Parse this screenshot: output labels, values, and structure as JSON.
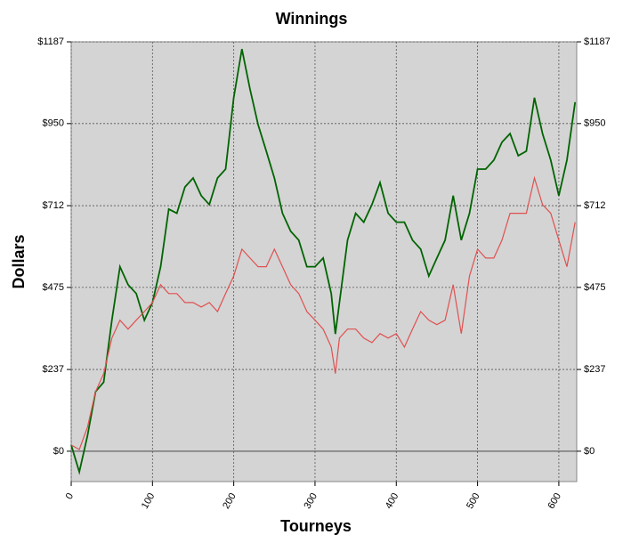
{
  "chart_data": {
    "type": "line",
    "title": "Winnings",
    "x_label": "Tourneys",
    "y_label": "Dollars",
    "x": [
      0,
      10,
      20,
      30,
      40,
      50,
      60,
      70,
      80,
      90,
      100,
      110,
      120,
      130,
      140,
      150,
      160,
      170,
      180,
      190,
      200,
      210,
      220,
      230,
      240,
      250,
      260,
      270,
      280,
      290,
      300,
      310,
      320,
      325,
      330,
      340,
      350,
      360,
      370,
      380,
      390,
      400,
      410,
      420,
      430,
      440,
      450,
      460,
      470,
      480,
      490,
      500,
      510,
      520,
      530,
      540,
      550,
      560,
      570,
      580,
      590,
      600,
      610,
      620
    ],
    "series": [
      {
        "color": "#006400",
        "values": [
          18,
          -60,
          45,
          173,
          200,
          380,
          535,
          483,
          457,
          380,
          431,
          535,
          702,
          690,
          766,
          792,
          741,
          715,
          792,
          818,
          1025,
          1166,
          1050,
          947,
          870,
          792,
          690,
          638,
          612,
          535,
          535,
          560,
          457,
          340,
          431,
          612,
          690,
          664,
          715,
          779,
          690,
          664,
          664,
          612,
          586,
          508,
          560,
          612,
          741,
          612,
          690,
          818,
          818,
          844,
          896,
          921,
          857,
          870,
          1025,
          921,
          844,
          741,
          844,
          1012
        ]
      },
      {
        "color": "#e05050",
        "values": [
          18,
          5,
          70,
          173,
          225,
          328,
          380,
          354,
          380,
          405,
          431,
          483,
          457,
          457,
          431,
          431,
          418,
          431,
          405,
          457,
          508,
          586,
          560,
          535,
          535,
          586,
          535,
          483,
          457,
          405,
          380,
          354,
          302,
          225,
          328,
          354,
          354,
          328,
          315,
          341,
          328,
          341,
          302,
          354,
          405,
          380,
          367,
          380,
          483,
          341,
          508,
          586,
          560,
          560,
          612,
          690,
          690,
          690,
          792,
          715,
          690,
          612,
          535,
          664
        ]
      }
    ],
    "xlim": [
      0,
      622
    ],
    "xticks": [
      0,
      100,
      200,
      300,
      400,
      500,
      600
    ],
    "ylim": [
      -88,
      1187
    ],
    "yticks": [
      {
        "value": 0,
        "label": "$0"
      },
      {
        "value": 237,
        "label": "$237"
      },
      {
        "value": 475,
        "label": "$475"
      },
      {
        "value": 712,
        "label": "$712"
      },
      {
        "value": 950,
        "label": "$950"
      },
      {
        "value": 1187,
        "label": "$1187"
      }
    ],
    "grid": true
  }
}
